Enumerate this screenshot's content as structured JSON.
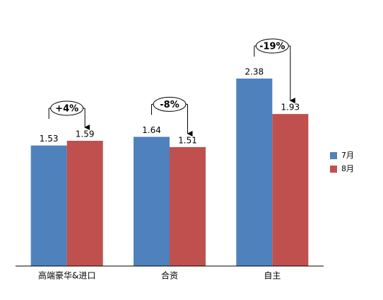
{
  "chart_data": {
    "type": "bar",
    "categories": [
      "高端豪华&进口",
      "合资",
      "自主"
    ],
    "series": [
      {
        "name": "7月",
        "color": "#4f81bd",
        "values": [
          1.53,
          1.64,
          2.38
        ]
      },
      {
        "name": "8月",
        "color": "#c0504d",
        "values": [
          1.59,
          1.51,
          1.93
        ]
      }
    ],
    "annotations": [
      "+4%",
      "-8%",
      "-19%"
    ],
    "ylim": [
      0,
      3
    ],
    "legend": "right"
  }
}
